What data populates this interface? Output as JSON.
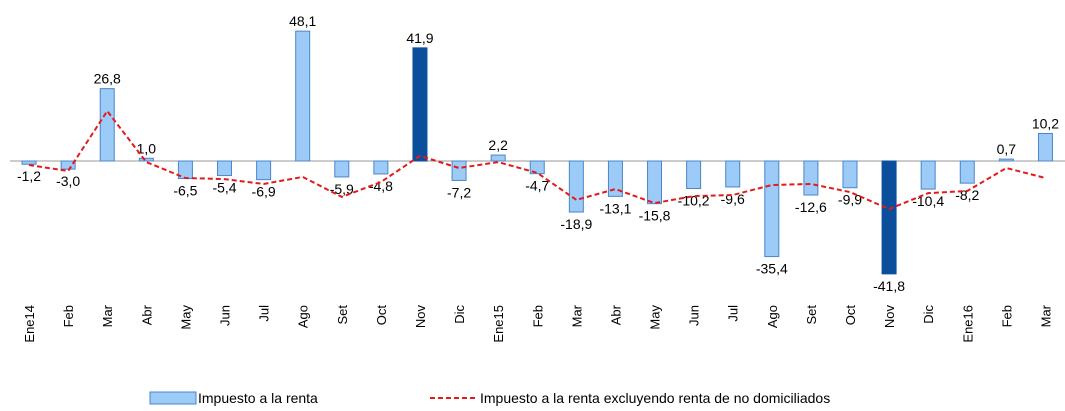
{
  "chart_data": {
    "type": "bar",
    "categories": [
      "Ene14",
      "Feb",
      "Mar",
      "Abr",
      "May",
      "Jun",
      "Jul",
      "Ago",
      "Set",
      "Oct",
      "Nov",
      "Dic",
      "Ene15",
      "Feb",
      "Mar",
      "Abr",
      "May",
      "Jun",
      "Jul",
      "Ago",
      "Set",
      "Oct",
      "Nov",
      "Dic",
      "Ene16",
      "Feb",
      "Mar"
    ],
    "ylim": [
      -50,
      50
    ],
    "series": [
      {
        "name": "Impuesto a la renta",
        "color": "#9ccbf7",
        "edge": "#4a86c8",
        "colors": [
          "#9ccbf7",
          "#9ccbf7",
          "#9ccbf7",
          "#9ccbf7",
          "#9ccbf7",
          "#9ccbf7",
          "#9ccbf7",
          "#9ccbf7",
          "#9ccbf7",
          "#9ccbf7",
          "#0b4f9c",
          "#9ccbf7",
          "#9ccbf7",
          "#9ccbf7",
          "#9ccbf7",
          "#9ccbf7",
          "#9ccbf7",
          "#9ccbf7",
          "#9ccbf7",
          "#9ccbf7",
          "#9ccbf7",
          "#9ccbf7",
          "#0b4f9c",
          "#9ccbf7",
          "#9ccbf7",
          "#9ccbf7",
          "#9ccbf7"
        ],
        "values": [
          -1.2,
          -3.0,
          26.8,
          1.0,
          -6.5,
          -5.4,
          -6.9,
          48.1,
          -5.9,
          -4.8,
          41.9,
          -7.2,
          2.2,
          -4.7,
          -18.9,
          -13.1,
          -15.8,
          -10.2,
          -9.6,
          -35.4,
          -12.6,
          -9.9,
          -41.8,
          -10.4,
          -8.2,
          0.7,
          10.2
        ],
        "value_labels": [
          "-1,2",
          "-3,0",
          "26,8",
          "1,0",
          "-6,5",
          "-5,4",
          "-6,9",
          "48,1",
          "-5,9",
          "-4,8",
          "41,9",
          "-7,2",
          "2,2",
          "-4,7",
          "-18,9",
          "-13,1",
          "-15,8",
          "-10,2",
          "-9,6",
          "-35,4",
          "-12,6",
          "-9,9",
          "-41,8",
          "-10,4",
          "-8,2",
          "0,7",
          "10,2"
        ]
      },
      {
        "name": "Impuesto a la renta excluyendo renta de no domiciliados",
        "type": "line",
        "color": "#e31a1c",
        "values": [
          -1.5,
          -3.7,
          18.5,
          -0.4,
          -6.3,
          -6.7,
          -8.5,
          -5.9,
          -13.3,
          -7.8,
          1.9,
          -2.6,
          -0.4,
          -4.4,
          -14.4,
          -10.4,
          -15.6,
          -13.0,
          -12.6,
          -8.9,
          -8.5,
          -11.5,
          -17.8,
          -11.9,
          -11.1,
          -2.6,
          -6.3
        ]
      }
    ]
  }
}
